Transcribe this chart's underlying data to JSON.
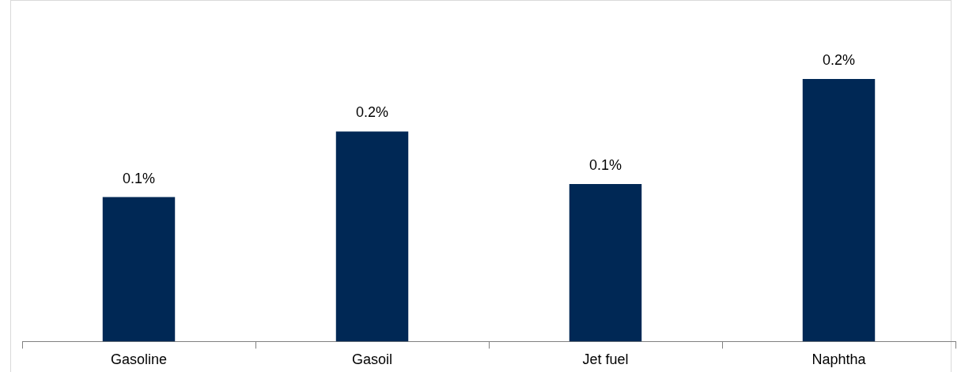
{
  "chart_data": {
    "type": "bar",
    "tick_labels": "x",
    "categories": [
      "Gasoline",
      "Gasoil",
      "Jet fuel",
      "Naphtha"
    ],
    "values": [
      0.11,
      0.16,
      0.12,
      0.2
    ],
    "value_labels": [
      "0.1%",
      "0.2%",
      "0.1%",
      "0.2%"
    ],
    "color": "#002855",
    "grid": false,
    "legend": false
  }
}
